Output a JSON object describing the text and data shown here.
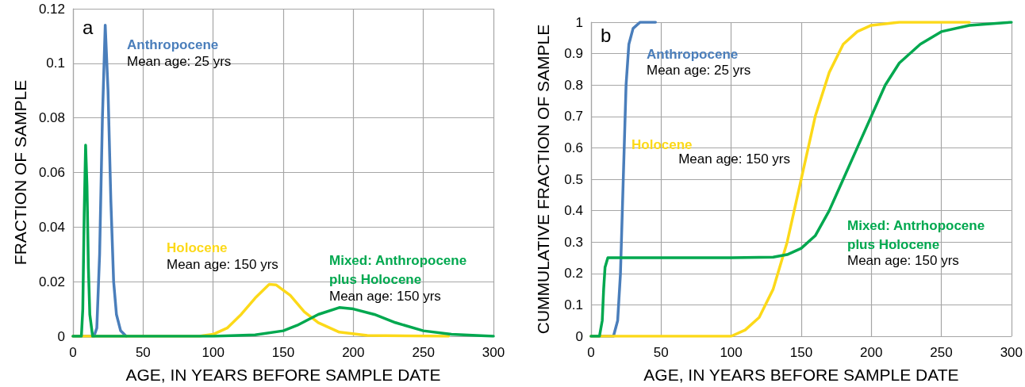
{
  "chart_data": [
    {
      "type": "line",
      "xlabel": "AGE, IN YEARS BEFORE SAMPLE DATE",
      "ylabel": "FRACTION OF SAMPLE",
      "xlim": [
        0,
        300
      ],
      "xticks": [
        0,
        50,
        100,
        150,
        200,
        250,
        300
      ],
      "ylim": [
        0,
        0.12
      ],
      "yticks": [
        0,
        0.02,
        0.04,
        0.06,
        0.08,
        0.1,
        0.12
      ],
      "grid": true,
      "legend": false,
      "marker": "none",
      "line_style": "solid",
      "annotations": [
        "a",
        "Mean age: 25 yrs",
        "Mean age: 150 yrs",
        "Mean age: 150 yrs"
      ],
      "series": [
        {
          "name": "Anthropocene",
          "color": "#4a7ebb",
          "x": [
            0,
            15,
            17,
            19,
            21,
            23,
            25,
            27,
            29,
            31,
            34,
            38
          ],
          "values": [
            0,
            0,
            0.003,
            0.03,
            0.08,
            0.114,
            0.09,
            0.05,
            0.02,
            0.008,
            0.002,
            0
          ]
        },
        {
          "name": "Holocene",
          "color": "#fcd919",
          "x": [
            0,
            90,
            100,
            110,
            120,
            130,
            140,
            145,
            155,
            165,
            175,
            190,
            210,
            268
          ],
          "values": [
            0,
            0,
            0.0007,
            0.003,
            0.008,
            0.014,
            0.019,
            0.0188,
            0.015,
            0.009,
            0.005,
            0.0015,
            0.0003,
            0
          ]
        },
        {
          "name": "Mixed: Anthropocene plus Holocene",
          "color": "#00a84f",
          "x": [
            0,
            6,
            7,
            8,
            9,
            10,
            11,
            12,
            14,
            100,
            130,
            150,
            160,
            175,
            190,
            200,
            215,
            230,
            250,
            270,
            300
          ],
          "values": [
            0,
            0,
            0.01,
            0.045,
            0.07,
            0.055,
            0.025,
            0.008,
            0,
            0,
            0.0005,
            0.002,
            0.004,
            0.008,
            0.0105,
            0.01,
            0.008,
            0.005,
            0.002,
            0.0007,
            0
          ]
        }
      ]
    },
    {
      "type": "line",
      "xlabel": "AGE, IN YEARS BEFORE SAMPLE DATE",
      "ylabel": "CUMMULATIVE FRACTION OF SAMPLE",
      "xlim": [
        0,
        300
      ],
      "xticks": [
        0,
        50,
        100,
        150,
        200,
        250,
        300
      ],
      "ylim": [
        0,
        1
      ],
      "yticks": [
        0,
        0.1,
        0.2,
        0.3,
        0.4,
        0.5,
        0.6,
        0.7,
        0.8,
        0.9,
        1
      ],
      "grid": true,
      "legend": false,
      "marker": "none",
      "line_style": "solid",
      "annotations": [
        "b",
        "Mean age: 25 yrs",
        "Mean age: 150 yrs",
        "Mean age: 150 yrs"
      ],
      "series": [
        {
          "name": "Anthropocene",
          "color": "#4a7ebb",
          "x": [
            0,
            16,
            19,
            21,
            23,
            25,
            27,
            30,
            35,
            46
          ],
          "values": [
            0,
            0,
            0.05,
            0.2,
            0.5,
            0.8,
            0.93,
            0.98,
            1,
            1
          ]
        },
        {
          "name": "Holocene",
          "color": "#fcd919",
          "x": [
            0,
            100,
            110,
            120,
            130,
            140,
            150,
            160,
            170,
            180,
            190,
            200,
            220,
            270
          ],
          "values": [
            0,
            0,
            0.02,
            0.06,
            0.15,
            0.3,
            0.5,
            0.7,
            0.84,
            0.93,
            0.97,
            0.99,
            1,
            1
          ]
        },
        {
          "name": "Mixed: Antrhopocene plus Holocene",
          "color": "#00a84f",
          "x": [
            0,
            6,
            8,
            9,
            10,
            12,
            100,
            130,
            140,
            150,
            160,
            170,
            180,
            190,
            200,
            210,
            220,
            235,
            250,
            270,
            300
          ],
          "values": [
            0,
            0,
            0.05,
            0.15,
            0.22,
            0.25,
            0.25,
            0.252,
            0.26,
            0.28,
            0.32,
            0.4,
            0.5,
            0.6,
            0.7,
            0.8,
            0.87,
            0.93,
            0.97,
            0.99,
            1
          ]
        }
      ]
    }
  ]
}
